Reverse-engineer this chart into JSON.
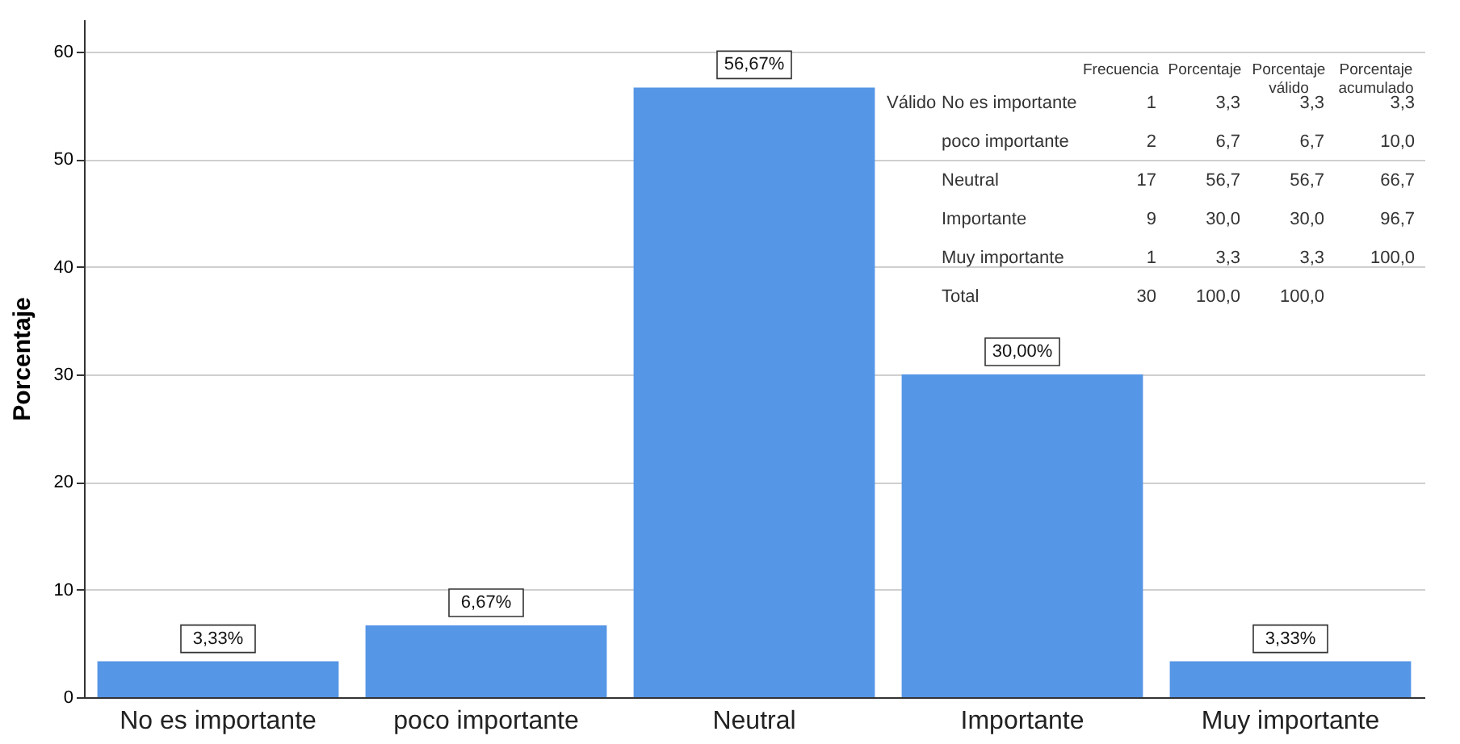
{
  "chart_data": {
    "type": "bar",
    "ylabel": "Porcentaje",
    "categories": [
      "No es importante",
      "poco importante",
      "Neutral",
      "Importante",
      "Muy importante"
    ],
    "values": [
      3.33,
      6.67,
      56.67,
      30.0,
      3.33
    ],
    "color": "#5596e6",
    "value_labels": [
      "3,33%",
      "6,67%",
      "56,67%",
      "30,00%",
      "3,33%"
    ],
    "ylim": [
      0,
      63
    ],
    "yticks": [
      0,
      10,
      20,
      30,
      40,
      50,
      60
    ],
    "grid": "y",
    "annotations": [
      "Frecuencia",
      "Porcentaje",
      "Porcentaje válido",
      "Porcentaje acumulado",
      "Válido",
      "No es importante",
      "1",
      "3,3",
      "3,3",
      "3,3",
      "poco importante",
      "2",
      "6,7",
      "6,7",
      "10,0",
      "Neutral",
      "17",
      "56,7",
      "56,7",
      "66,7",
      "Importante",
      "9",
      "30,0",
      "30,0",
      "96,7",
      "Muy importante",
      "1",
      "3,3",
      "3,3",
      "100,0",
      "Total",
      "30",
      "100,0",
      "100,0"
    ]
  }
}
